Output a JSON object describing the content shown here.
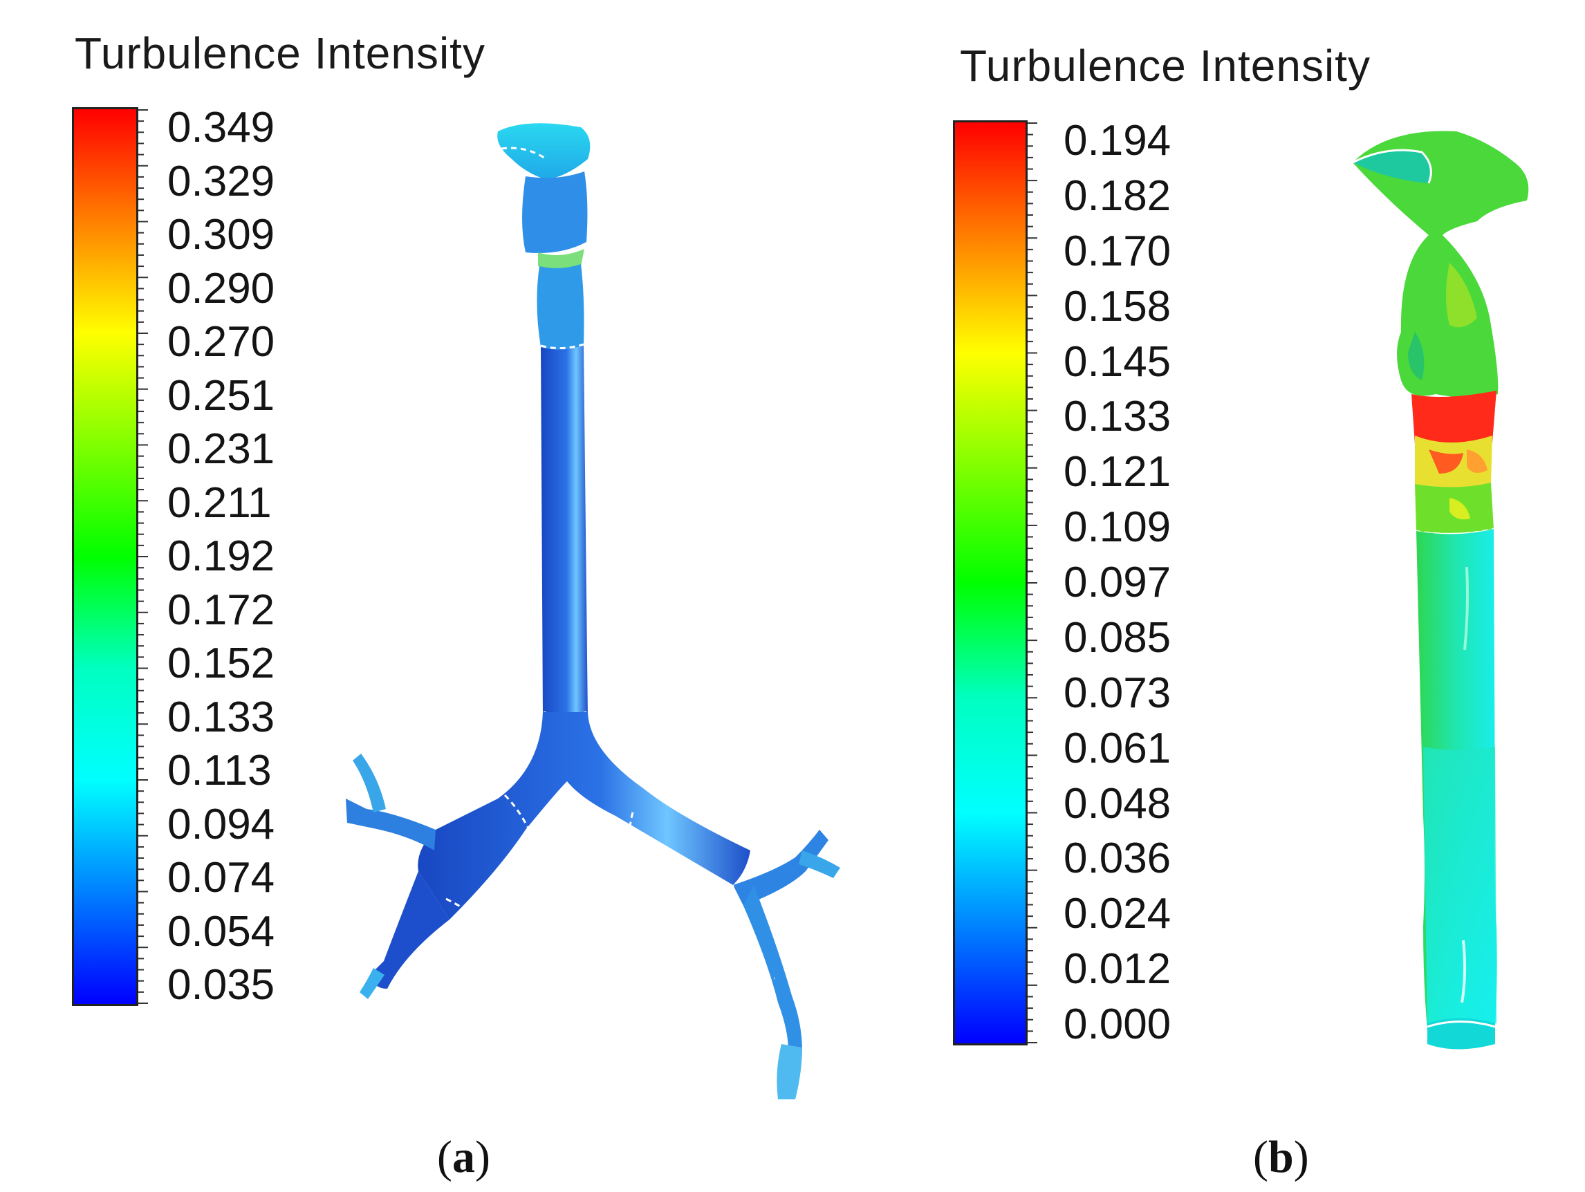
{
  "panels": [
    {
      "id": "a",
      "colorbar_title": "Turbulence Intensity",
      "ticks": [
        "0.349",
        "0.329",
        "0.309",
        "0.290",
        "0.270",
        "0.251",
        "0.231",
        "0.211",
        "0.192",
        "0.172",
        "0.152",
        "0.133",
        "0.113",
        "0.094",
        "0.074",
        "0.054",
        "0.035"
      ],
      "caption_open": "(",
      "caption_letter": "a",
      "caption_close": ")",
      "scale_min": 0.035,
      "scale_max": 0.349
    },
    {
      "id": "b",
      "colorbar_title": "Turbulence Intensity",
      "ticks": [
        "0.194",
        "0.182",
        "0.170",
        "0.158",
        "0.145",
        "0.133",
        "0.121",
        "0.109",
        "0.097",
        "0.085",
        "0.073",
        "0.061",
        "0.048",
        "0.036",
        "0.024",
        "0.012",
        "0.000"
      ],
      "caption_open": "(",
      "caption_letter": "b",
      "caption_close": ")",
      "scale_min": 0.0,
      "scale_max": 0.194
    }
  ],
  "colors": {
    "colormap": [
      "#ff0000",
      "#ff8000",
      "#ffff00",
      "#80ff00",
      "#00ff00",
      "#00ffc0",
      "#00ffff",
      "#0080ff",
      "#0000ff"
    ],
    "model_a_main": "#1f5fd6",
    "model_a_light": "#4fb8ee",
    "model_b_main": "#36e048",
    "model_b_cyan": "#19ecec",
    "model_b_red": "#ff2a1a"
  }
}
